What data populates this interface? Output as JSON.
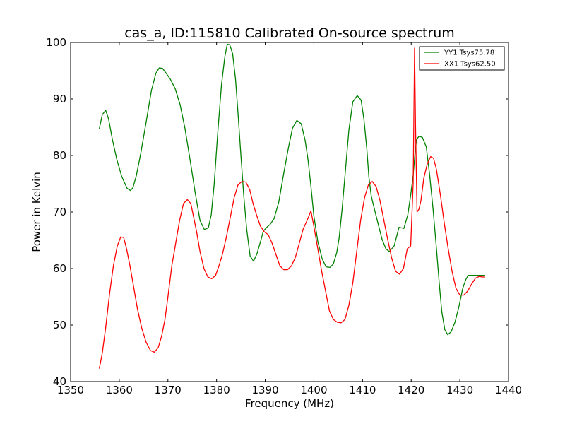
{
  "chart_data": {
    "type": "line",
    "title": "cas_a, ID:115810 Calibrated On-source spectrum",
    "xlabel": "Frequency (MHz)",
    "ylabel": "Power in Kelvin",
    "xlim": [
      1350,
      1440
    ],
    "ylim": [
      40,
      100
    ],
    "xticks": [
      "1350",
      "1360",
      "1370",
      "1380",
      "1390",
      "1400",
      "1410",
      "1420",
      "1430",
      "1440"
    ],
    "yticks": [
      "40",
      "50",
      "60",
      "70",
      "80",
      "90",
      "100"
    ],
    "grid": false,
    "legend_position": "top-right",
    "series": [
      {
        "name": "YY1 Tsys75.78",
        "color": "#008000",
        "x": [
          1355.9,
          1356.5,
          1357.2,
          1357.8,
          1358.6,
          1359.5,
          1360.5,
          1361.6,
          1362.3,
          1362.8,
          1363.5,
          1364.4,
          1365.5,
          1366.6,
          1367.5,
          1368.2,
          1368.9,
          1369.6,
          1370.5,
          1371.5,
          1372.5,
          1373.5,
          1374.5,
          1375.6,
          1376.6,
          1377.5,
          1378.3,
          1378.9,
          1379.5,
          1380.2,
          1381.0,
          1381.7,
          1382.2,
          1382.7,
          1383.3,
          1383.9,
          1384.4,
          1385.0,
          1385.6,
          1386.2,
          1386.9,
          1387.6,
          1388.3,
          1389.1,
          1389.6,
          1390.2,
          1391.0,
          1391.8,
          1392.8,
          1393.8,
          1394.8,
          1395.6,
          1396.5,
          1397.4,
          1398.2,
          1398.8,
          1399.4,
          1400.0,
          1400.8,
          1401.7,
          1402.5,
          1403.3,
          1404.0,
          1404.7,
          1405.2,
          1405.8,
          1406.5,
          1407.2,
          1408.0,
          1408.9,
          1409.7,
          1410.3,
          1410.9,
          1411.3,
          1411.8,
          1412.5,
          1413.2,
          1414.0,
          1414.8,
          1415.5,
          1416.5,
          1417.5,
          1418.5,
          1419.3,
          1419.9,
          1420.4,
          1420.8,
          1421.1,
          1421.6,
          1422.3,
          1423.1,
          1423.8,
          1424.5,
          1425.2,
          1425.8,
          1426.3,
          1426.9,
          1427.5,
          1428.2,
          1429.0,
          1429.8,
          1430.6,
          1431.2,
          1431.7,
          1432.2,
          1432.7,
          1433.3,
          1434.0,
          1434.6,
          1435.2
        ],
        "y": [
          84.7,
          87.2,
          88.0,
          86.5,
          82.8,
          79.3,
          76.3,
          74.2,
          73.8,
          74.3,
          76.4,
          80.3,
          85.8,
          91.5,
          94.5,
          95.5,
          95.4,
          94.6,
          93.5,
          91.8,
          89.0,
          84.8,
          79.5,
          73.4,
          68.5,
          66.9,
          67.2,
          69.5,
          74.8,
          83.5,
          92.5,
          97.5,
          99.7,
          99.6,
          98.0,
          93.5,
          87.5,
          80.0,
          72.8,
          66.8,
          62.2,
          61.3,
          62.6,
          65.0,
          66.6,
          67.2,
          67.8,
          68.8,
          71.8,
          76.8,
          81.5,
          84.8,
          86.2,
          85.6,
          82.7,
          79.2,
          74.5,
          69.3,
          64.8,
          61.7,
          60.3,
          60.2,
          60.8,
          62.8,
          65.5,
          70.5,
          77.5,
          84.5,
          89.5,
          90.6,
          89.8,
          86.3,
          81.0,
          76.2,
          72.8,
          70.3,
          67.9,
          65.2,
          63.5,
          63.0,
          64.0,
          67.3,
          67.1,
          69.5,
          73.0,
          76.5,
          80.5,
          82.8,
          83.4,
          83.2,
          81.5,
          76.5,
          70.5,
          63.5,
          57.0,
          52.3,
          49.2,
          48.3,
          48.8,
          50.5,
          53.2,
          56.5,
          58.0,
          58.8,
          58.8,
          58.8,
          58.8,
          58.8,
          58.8,
          58.8
        ]
      },
      {
        "name": "XX1 Tsys62.50",
        "color": "#ff0000",
        "x": [
          1355.9,
          1356.5,
          1357.2,
          1358.0,
          1358.8,
          1359.6,
          1360.3,
          1360.9,
          1361.5,
          1362.2,
          1362.9,
          1363.7,
          1364.6,
          1365.5,
          1366.4,
          1367.2,
          1368.0,
          1368.7,
          1369.4,
          1370.0,
          1370.8,
          1371.6,
          1372.4,
          1373.2,
          1374.0,
          1374.7,
          1375.3,
          1375.9,
          1376.6,
          1377.4,
          1378.2,
          1379.0,
          1379.8,
          1380.5,
          1381.2,
          1382.0,
          1382.8,
          1383.6,
          1384.4,
          1385.2,
          1386.0,
          1386.8,
          1387.5,
          1388.2,
          1389.0,
          1389.8,
          1390.6,
          1391.4,
          1392.2,
          1393.0,
          1393.8,
          1394.6,
          1395.4,
          1396.2,
          1397.0,
          1397.8,
          1398.6,
          1399.4,
          1400.1,
          1400.8,
          1401.6,
          1402.4,
          1403.2,
          1404.0,
          1404.8,
          1405.6,
          1406.4,
          1407.2,
          1408.0,
          1408.8,
          1409.6,
          1410.4,
          1411.2,
          1412.0,
          1412.8,
          1413.6,
          1414.4,
          1415.2,
          1416.0,
          1416.8,
          1417.6,
          1418.4,
          1419.2,
          1419.9,
          1420.4,
          1420.7,
          1420.9,
          1421.2,
          1421.6,
          1422.0,
          1422.6,
          1423.3,
          1424.0,
          1424.6,
          1425.2,
          1426.0,
          1426.8,
          1427.6,
          1428.4,
          1429.2,
          1430.0,
          1430.8,
          1431.6,
          1432.4,
          1433.2,
          1434.0,
          1434.6,
          1435.2
        ],
        "y": [
          42.3,
          45.0,
          49.5,
          55.5,
          60.5,
          64.0,
          65.6,
          65.5,
          63.5,
          60.5,
          57.0,
          53.0,
          49.5,
          47.0,
          45.5,
          45.2,
          46.0,
          48.0,
          51.0,
          55.0,
          60.5,
          64.5,
          68.5,
          71.5,
          72.2,
          71.5,
          69.0,
          66.5,
          63.0,
          60.0,
          58.5,
          58.2,
          58.8,
          60.5,
          62.5,
          65.5,
          69.0,
          72.5,
          74.8,
          75.4,
          75.3,
          74.0,
          71.5,
          69.5,
          67.5,
          66.5,
          66.0,
          64.5,
          62.5,
          60.5,
          59.8,
          59.8,
          60.5,
          62.0,
          64.5,
          67.0,
          68.5,
          70.2,
          67.0,
          63.5,
          59.5,
          56.0,
          52.5,
          51.0,
          50.5,
          50.4,
          51.0,
          53.5,
          57.5,
          63.0,
          68.5,
          72.5,
          74.8,
          75.4,
          74.5,
          72.0,
          68.5,
          65.0,
          61.8,
          59.5,
          59.0,
          60.0,
          63.5,
          64.0,
          75.0,
          99.0,
          85.0,
          70.0,
          70.5,
          72.0,
          76.0,
          78.5,
          79.8,
          79.5,
          77.5,
          73.0,
          68.0,
          63.5,
          59.5,
          56.5,
          55.3,
          55.3,
          56.0,
          57.2,
          58.3,
          58.6,
          58.5,
          58.5
        ]
      }
    ]
  }
}
